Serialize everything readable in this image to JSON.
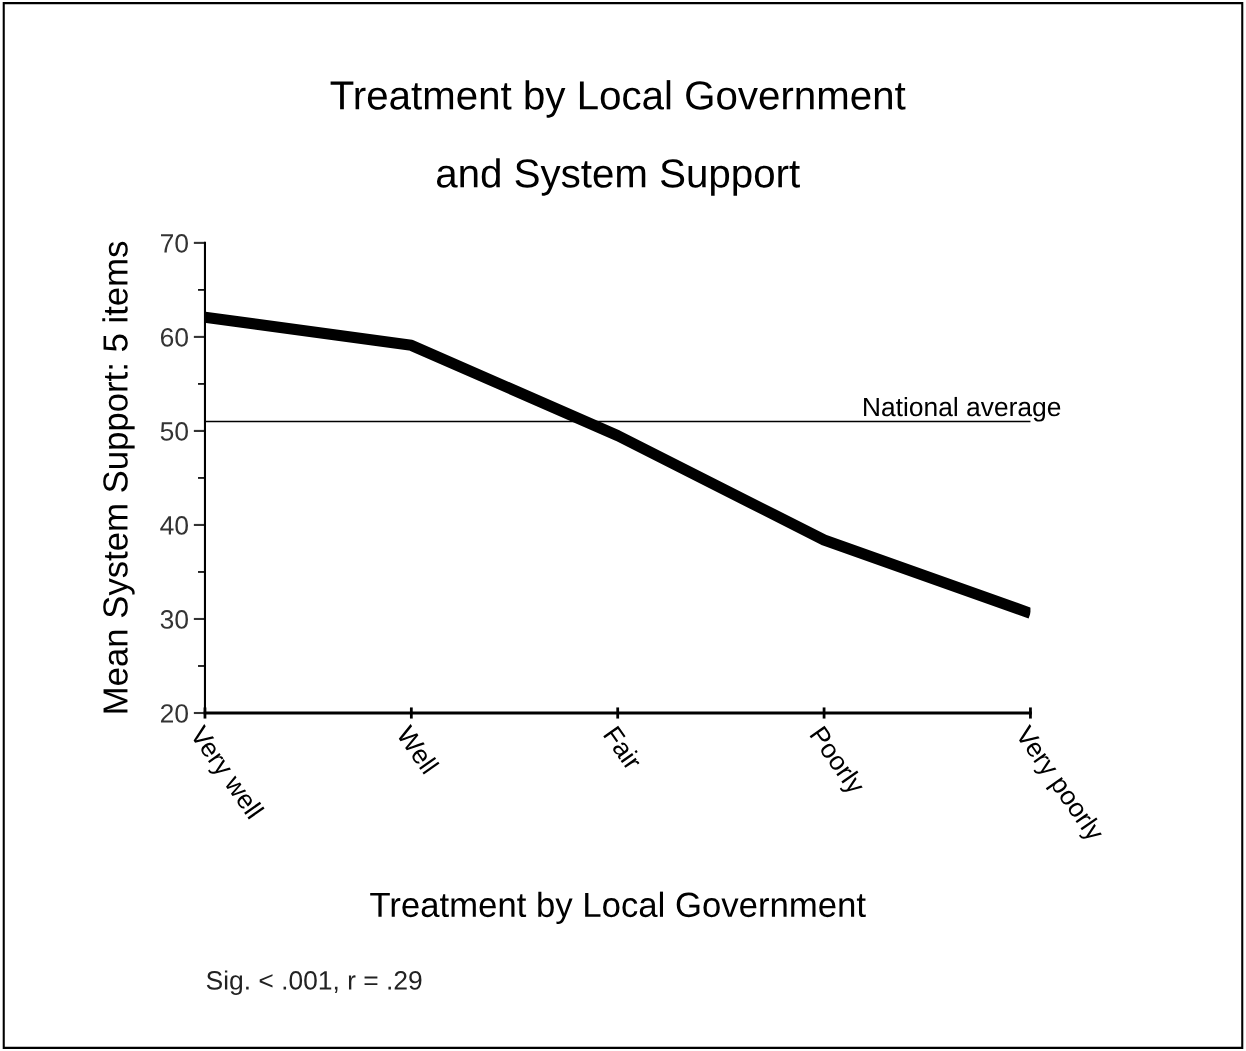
{
  "chart_data": {
    "type": "line",
    "title": "Treatment by Local Government\n\nand System Support",
    "xlabel": "Treatment by Local Government",
    "ylabel": "Mean System Support: 5 items",
    "categories": [
      "Very well",
      "Well",
      "Fair",
      "Poorly",
      "Very poorly"
    ],
    "series": [
      {
        "color": "#000000",
        "values": [
          62.1,
          59.1,
          49.5,
          38.4,
          30.6
        ]
      }
    ],
    "ylim": [
      20,
      70
    ],
    "yticks": [
      20,
      30,
      40,
      50,
      60,
      70
    ],
    "ref_lines": [
      {
        "axis": "y",
        "value": 51,
        "label": "National average",
        "color": "#000000"
      }
    ],
    "annotations": [
      "Sig. < .001, r = .29"
    ],
    "grid": false,
    "legend": false,
    "marker": "none",
    "line_style": "solid"
  }
}
